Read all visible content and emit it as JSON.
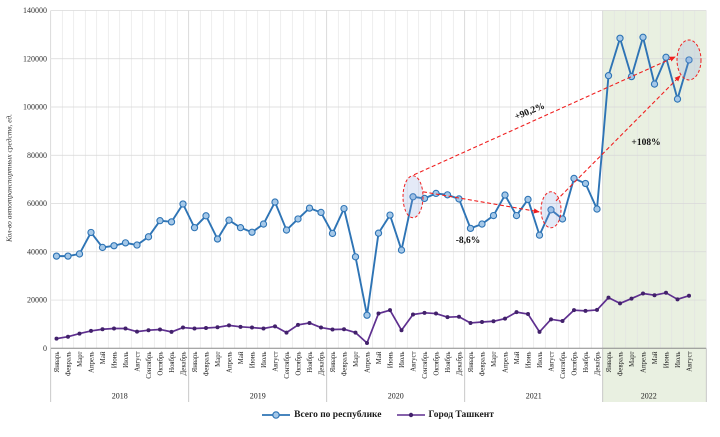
{
  "chart_data": {
    "type": "line",
    "title": "",
    "ylabel": "Кол-во автотранспортных средств, ед.",
    "ylim": [
      0,
      140000
    ],
    "ytick_step": 20000,
    "grid": true,
    "legend_position": "bottom",
    "month_names": [
      "Январь",
      "Февраль",
      "Март",
      "Апрель",
      "Май",
      "Июнь",
      "Июль",
      "Август",
      "Сентябрь",
      "Октябрь",
      "Ноябрь",
      "Декабрь"
    ],
    "year_groups": [
      {
        "year": "2018",
        "n_months": 12,
        "highlighted": false
      },
      {
        "year": "2019",
        "n_months": 12,
        "highlighted": false
      },
      {
        "year": "2020",
        "n_months": 12,
        "highlighted": false
      },
      {
        "year": "2021",
        "n_months": 12,
        "highlighted": false
      },
      {
        "year": "2022",
        "n_months": 8,
        "highlighted": true
      }
    ],
    "highlight_band_color": "#e9f0e1",
    "series": [
      {
        "name": "Всего по республике",
        "line_color": "#2e74b5",
        "marker": "circle",
        "marker_fill": "#a5c8e8",
        "values": [
          38200,
          38200,
          39100,
          48000,
          41800,
          42500,
          43700,
          42800,
          46200,
          52900,
          52400,
          59800,
          50000,
          54900,
          45300,
          53100,
          50000,
          48100,
          51500,
          60600,
          49000,
          53600,
          58100,
          56300,
          47600,
          57900,
          37900,
          13700,
          47700,
          55200,
          40700,
          62800,
          62100,
          64200,
          63600,
          61900,
          49700,
          51500,
          55000,
          63500,
          55000,
          61700,
          46900,
          57400,
          53600,
          70400,
          68300,
          57700,
          113000,
          128500,
          112600,
          128900,
          109500,
          120600,
          103300,
          119500
        ]
      },
      {
        "name": "Город Ташкент",
        "line_color": "#5e2f8f",
        "marker": "dot",
        "marker_fill": "#42216b",
        "values": [
          4000,
          4800,
          6100,
          7200,
          7900,
          8200,
          8200,
          6900,
          7500,
          7800,
          6800,
          8600,
          8200,
          8400,
          8700,
          9500,
          8900,
          8600,
          8200,
          9100,
          6500,
          9700,
          10500,
          8600,
          7800,
          7900,
          6500,
          2200,
          14400,
          15800,
          7500,
          14000,
          14700,
          14400,
          12900,
          13100,
          10500,
          10900,
          11200,
          12300,
          15000,
          14200,
          6800,
          12000,
          11300,
          15800,
          15500,
          15900,
          21000,
          18600,
          20600,
          22700,
          22000,
          23000,
          20300,
          21800
        ]
      }
    ],
    "highlighted_month_indices": [
      31,
      43,
      55
    ],
    "annotations": [
      {
        "label": "+90,2%",
        "from_index": 31,
        "to_index": 55
      },
      {
        "label": "-8,6%",
        "from_index": 31,
        "to_index": 43
      },
      {
        "label": "+108%",
        "from_index": 43,
        "to_index": 55
      }
    ],
    "annotation_line_color": "#f02020",
    "ellipse_fill": "rgba(130,160,220,0.22)"
  }
}
